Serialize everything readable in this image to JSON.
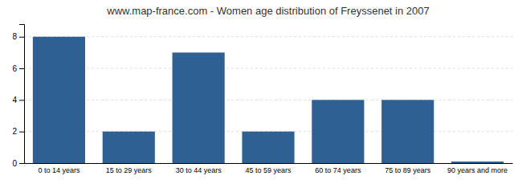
{
  "chart_data": {
    "type": "bar",
    "title": "www.map-france.com - Women age distribution of Freyssenet in 2007",
    "categories": [
      "0 to 14 years",
      "15 to 29 years",
      "30 to 44 years",
      "45 to 59 years",
      "60 to 74 years",
      "75 to 89 years",
      "90 years and more"
    ],
    "values": [
      8,
      2,
      7,
      2,
      4,
      4,
      0.1
    ],
    "color": "#2e6094",
    "ylim": [
      0,
      8.8
    ],
    "yticks": [
      0,
      2,
      4,
      6,
      8
    ],
    "grid": true
  }
}
